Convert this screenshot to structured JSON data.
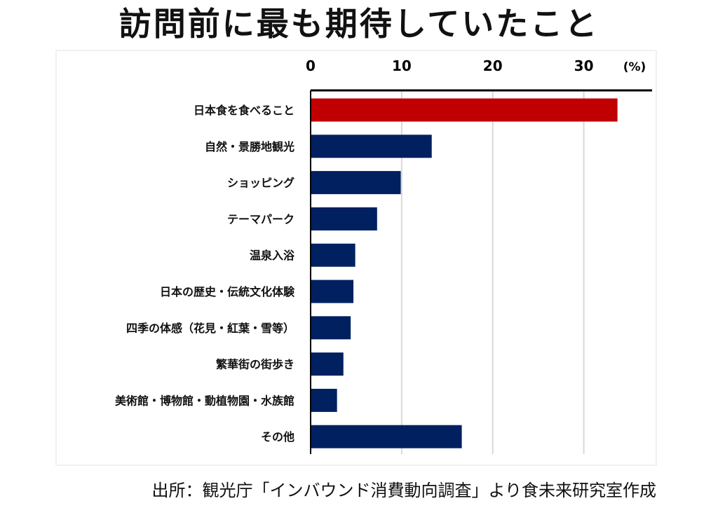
{
  "chart_data": {
    "type": "bar",
    "orientation": "horizontal",
    "title": "訪問前に最も期待していたこと",
    "unit_label": "(%)",
    "categories": [
      "日本食を食べること",
      "自然・景勝地観光",
      "ショッピング",
      "テーマパーク",
      "温泉入浴",
      "日本の歴史・伝統文化体験",
      "四季の体感（花見・紅葉・雪等）",
      "繁華街の街歩き",
      "美術館・博物館・動植物園・水族館",
      "その他"
    ],
    "values": [
      33.7,
      13.3,
      9.9,
      7.3,
      4.9,
      4.7,
      4.4,
      3.6,
      2.9,
      16.6
    ],
    "xlim": [
      0,
      37.5
    ],
    "xticks": [
      0,
      10,
      20,
      30
    ],
    "xtick_labels": [
      "0",
      "10",
      "20",
      "30"
    ],
    "x_axis_position": "top",
    "grid": true,
    "colors": {
      "highlight": "#c00000",
      "default": "#002060",
      "grid": "#d9d9d9",
      "axis": "#000000"
    },
    "highlight_index": 0
  },
  "source_note": "出所：観光庁「インバウンド消費動向調査」より食未来研究室作成"
}
